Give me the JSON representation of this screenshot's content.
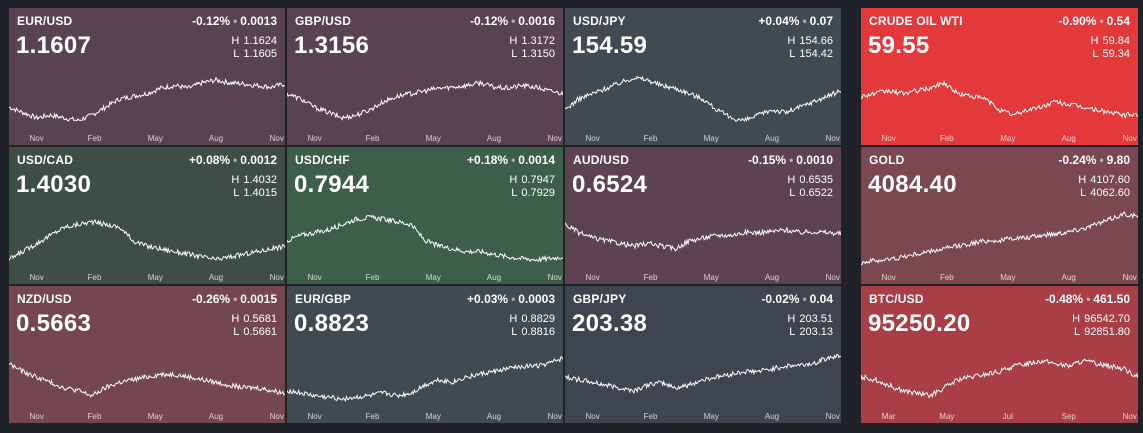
{
  "tiles": [
    {
      "symbol": "EUR/USD",
      "change_pct": "-0.12%",
      "change_abs": "0.0013",
      "price": "1.1607",
      "high": "1.1624",
      "low": "1.1605",
      "bg": "#5a4350",
      "months": [
        "Nov",
        "Feb",
        "May",
        "Aug",
        "Nov"
      ],
      "trend": [
        0.35,
        0.25,
        0.15,
        0.2,
        0.15,
        0.1,
        0.2,
        0.35,
        0.5,
        0.55,
        0.6,
        0.7,
        0.75,
        0.7,
        0.8,
        0.85,
        0.8,
        0.78,
        0.75,
        0.72,
        0.78
      ]
    },
    {
      "symbol": "GBP/USD",
      "change_pct": "-0.12%",
      "change_abs": "0.0016",
      "price": "1.3156",
      "high": "1.3172",
      "low": "1.3150",
      "bg": "#5a4350",
      "months": [
        "Nov",
        "Feb",
        "May",
        "Aug",
        "Nov"
      ],
      "trend": [
        0.6,
        0.5,
        0.35,
        0.25,
        0.15,
        0.2,
        0.3,
        0.45,
        0.55,
        0.6,
        0.65,
        0.7,
        0.72,
        0.75,
        0.8,
        0.72,
        0.7,
        0.75,
        0.72,
        0.65,
        0.6
      ]
    },
    {
      "symbol": "USD/JPY",
      "change_pct": "+0.04%",
      "change_abs": "0.07",
      "price": "154.59",
      "high": "154.66",
      "low": "154.42",
      "bg": "#414a52",
      "months": [
        "Nov",
        "Feb",
        "May",
        "Aug",
        "Nov"
      ],
      "trend": [
        0.3,
        0.5,
        0.6,
        0.7,
        0.8,
        0.9,
        0.85,
        0.75,
        0.7,
        0.6,
        0.5,
        0.3,
        0.15,
        0.1,
        0.2,
        0.3,
        0.25,
        0.35,
        0.45,
        0.55,
        0.65
      ]
    },
    {
      "symbol": "CRUDE OIL WTI",
      "change_pct": "-0.90%",
      "change_abs": "0.54",
      "price": "59.55",
      "high": "59.84",
      "low": "59.34",
      "bg": "#e3393a",
      "months": [
        "Nov",
        "Feb",
        "May",
        "Aug",
        "Nov"
      ],
      "trend": [
        0.55,
        0.6,
        0.65,
        0.6,
        0.65,
        0.7,
        0.8,
        0.6,
        0.55,
        0.5,
        0.3,
        0.2,
        0.3,
        0.35,
        0.45,
        0.4,
        0.35,
        0.3,
        0.25,
        0.2,
        0.22
      ]
    },
    {
      "symbol": "USD/CAD",
      "change_pct": "+0.08%",
      "change_abs": "0.0012",
      "price": "1.4030",
      "high": "1.4032",
      "low": "1.4015",
      "bg": "#3e4d46",
      "months": [
        "Nov",
        "Feb",
        "May",
        "Aug",
        "Nov"
      ],
      "trend": [
        0.1,
        0.25,
        0.4,
        0.55,
        0.7,
        0.75,
        0.8,
        0.75,
        0.7,
        0.45,
        0.35,
        0.3,
        0.25,
        0.2,
        0.15,
        0.1,
        0.15,
        0.2,
        0.25,
        0.3,
        0.35
      ]
    },
    {
      "symbol": "USD/CHF",
      "change_pct": "+0.18%",
      "change_abs": "0.0014",
      "price": "0.7944",
      "high": "0.7947",
      "low": "0.7929",
      "bg": "#3d5e4a",
      "months": [
        "Nov",
        "Feb",
        "May",
        "Aug",
        "Nov"
      ],
      "trend": [
        0.45,
        0.55,
        0.6,
        0.65,
        0.75,
        0.85,
        0.88,
        0.85,
        0.8,
        0.75,
        0.45,
        0.35,
        0.3,
        0.25,
        0.25,
        0.2,
        0.15,
        0.12,
        0.1,
        0.12,
        0.15
      ]
    },
    {
      "symbol": "AUD/USD",
      "change_pct": "-0.15%",
      "change_abs": "0.0010",
      "price": "0.6524",
      "high": "0.6535",
      "low": "0.6522",
      "bg": "#5c434f",
      "months": [
        "Nov",
        "Feb",
        "May",
        "Aug",
        "Nov"
      ],
      "trend": [
        0.75,
        0.6,
        0.5,
        0.45,
        0.4,
        0.35,
        0.4,
        0.35,
        0.3,
        0.45,
        0.5,
        0.55,
        0.55,
        0.6,
        0.6,
        0.62,
        0.65,
        0.6,
        0.62,
        0.6,
        0.58
      ]
    },
    {
      "symbol": "GOLD",
      "change_pct": "-0.24%",
      "change_abs": "9.80",
      "price": "4084.40",
      "high": "4107.60",
      "low": "4062.60",
      "bg": "#7b4750",
      "months": [
        "Nov",
        "Feb",
        "May",
        "Aug",
        "Nov"
      ],
      "trend": [
        0.05,
        0.08,
        0.1,
        0.15,
        0.2,
        0.25,
        0.3,
        0.35,
        0.4,
        0.45,
        0.45,
        0.5,
        0.5,
        0.55,
        0.58,
        0.62,
        0.68,
        0.75,
        0.85,
        0.95,
        0.9
      ]
    },
    {
      "symbol": "NZD/USD",
      "change_pct": "-0.26%",
      "change_abs": "0.0015",
      "price": "0.5663",
      "high": "0.5681",
      "low": "0.5661",
      "bg": "#734650",
      "months": [
        "Nov",
        "Feb",
        "May",
        "Aug",
        "Nov"
      ],
      "trend": [
        0.75,
        0.6,
        0.5,
        0.4,
        0.3,
        0.25,
        0.15,
        0.3,
        0.4,
        0.45,
        0.5,
        0.55,
        0.55,
        0.5,
        0.45,
        0.4,
        0.35,
        0.3,
        0.3,
        0.25,
        0.2
      ]
    },
    {
      "symbol": "EUR/GBP",
      "change_pct": "+0.03%",
      "change_abs": "0.0003",
      "price": "0.8823",
      "high": "0.8829",
      "low": "0.8816",
      "bg": "#404a51",
      "months": [
        "Nov",
        "Feb",
        "May",
        "Aug",
        "Nov"
      ],
      "trend": [
        0.25,
        0.2,
        0.15,
        0.12,
        0.1,
        0.12,
        0.15,
        0.2,
        0.15,
        0.2,
        0.35,
        0.45,
        0.4,
        0.5,
        0.55,
        0.6,
        0.65,
        0.7,
        0.7,
        0.75,
        0.85
      ]
    },
    {
      "symbol": "GBP/JPY",
      "change_pct": "-0.02%",
      "change_abs": "0.04",
      "price": "203.38",
      "high": "203.51",
      "low": "203.13",
      "bg": "#3f4451",
      "months": [
        "Nov",
        "Feb",
        "May",
        "Aug",
        "Nov"
      ],
      "trend": [
        0.5,
        0.45,
        0.4,
        0.35,
        0.3,
        0.25,
        0.35,
        0.4,
        0.3,
        0.35,
        0.45,
        0.5,
        0.55,
        0.6,
        0.6,
        0.65,
        0.7,
        0.72,
        0.75,
        0.85,
        0.9
      ]
    },
    {
      "symbol": "BTC/USD",
      "change_pct": "-0.48%",
      "change_abs": "461.50",
      "price": "95250.20",
      "high": "96542.70",
      "low": "92851.80",
      "bg": "#a93e46",
      "months": [
        "Mar",
        "May",
        "Jul",
        "Sep",
        "Nov"
      ],
      "trend": [
        0.5,
        0.45,
        0.35,
        0.25,
        0.2,
        0.15,
        0.3,
        0.45,
        0.5,
        0.55,
        0.6,
        0.7,
        0.75,
        0.8,
        0.75,
        0.7,
        0.8,
        0.75,
        0.7,
        0.65,
        0.5
      ]
    }
  ],
  "labels": {
    "high_prefix": "H",
    "low_prefix": "L",
    "separator": "•"
  }
}
